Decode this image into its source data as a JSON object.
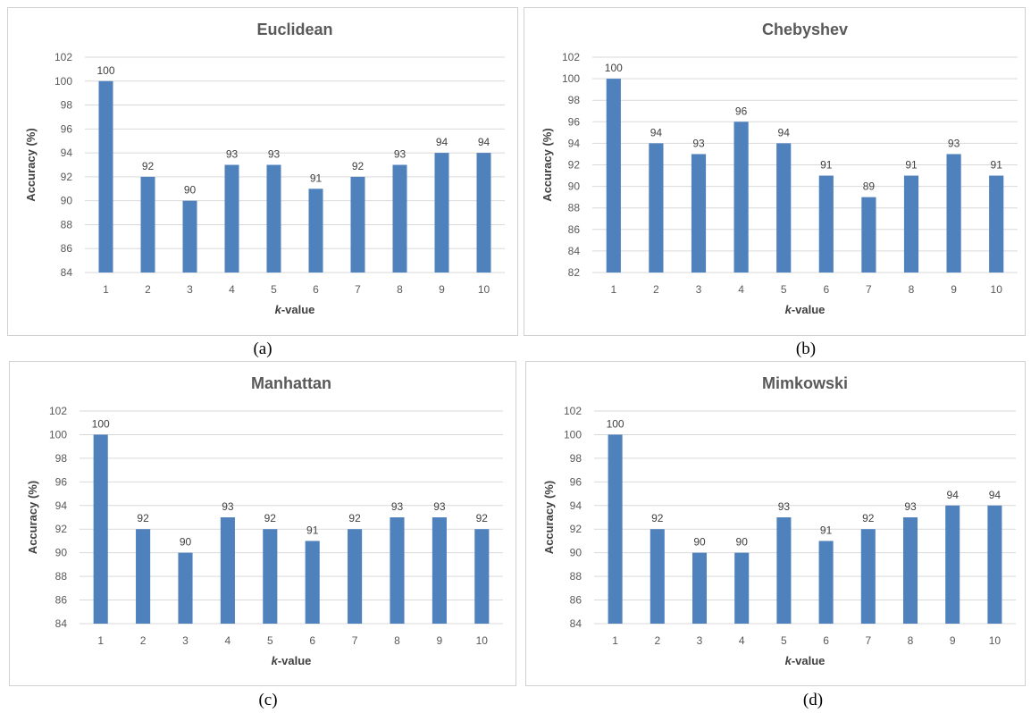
{
  "chart_data": [
    {
      "type": "bar",
      "title": "Euclidean",
      "caption": "(a)",
      "xlabel": "k-value",
      "ylabel": "Accuracy (%)",
      "categories": [
        "1",
        "2",
        "3",
        "4",
        "5",
        "6",
        "7",
        "8",
        "9",
        "10"
      ],
      "values": [
        100,
        92,
        90,
        93,
        93,
        91,
        92,
        93,
        94,
        94
      ],
      "ylim": [
        84,
        102
      ],
      "yticks": [
        84,
        86,
        88,
        90,
        92,
        94,
        96,
        98,
        100,
        102
      ],
      "grid": true,
      "bar_color": "#4f81bd"
    },
    {
      "type": "bar",
      "title": "Chebyshev",
      "caption": "(b)",
      "xlabel": "k-value",
      "ylabel": "Accuracy (%)",
      "categories": [
        "1",
        "2",
        "3",
        "4",
        "5",
        "6",
        "7",
        "8",
        "9",
        "10"
      ],
      "values": [
        100,
        94,
        93,
        96,
        94,
        91,
        89,
        91,
        93,
        91
      ],
      "ylim": [
        82,
        102
      ],
      "yticks": [
        82,
        84,
        86,
        88,
        90,
        92,
        94,
        96,
        98,
        100,
        102
      ],
      "grid": true,
      "bar_color": "#4f81bd"
    },
    {
      "type": "bar",
      "title": "Manhattan",
      "caption": "(c)",
      "xlabel": "k-value",
      "ylabel": "Accuracy (%)",
      "categories": [
        "1",
        "2",
        "3",
        "4",
        "5",
        "6",
        "7",
        "8",
        "9",
        "10"
      ],
      "values": [
        100,
        92,
        90,
        93,
        92,
        91,
        92,
        93,
        93,
        92
      ],
      "ylim": [
        84,
        102
      ],
      "yticks": [
        84,
        86,
        88,
        90,
        92,
        94,
        96,
        98,
        100,
        102
      ],
      "grid": true,
      "bar_color": "#4f81bd"
    },
    {
      "type": "bar",
      "title": "Mimkowski",
      "caption": "(d)",
      "xlabel": "k-value",
      "ylabel": "Accuracy (%)",
      "categories": [
        "1",
        "2",
        "3",
        "4",
        "5",
        "6",
        "7",
        "8",
        "9",
        "10"
      ],
      "values": [
        100,
        92,
        90,
        90,
        93,
        91,
        92,
        93,
        94,
        94
      ],
      "ylim": [
        84,
        102
      ],
      "yticks": [
        84,
        86,
        88,
        90,
        92,
        94,
        96,
        98,
        100,
        102
      ],
      "grid": true,
      "bar_color": "#4f81bd"
    }
  ]
}
